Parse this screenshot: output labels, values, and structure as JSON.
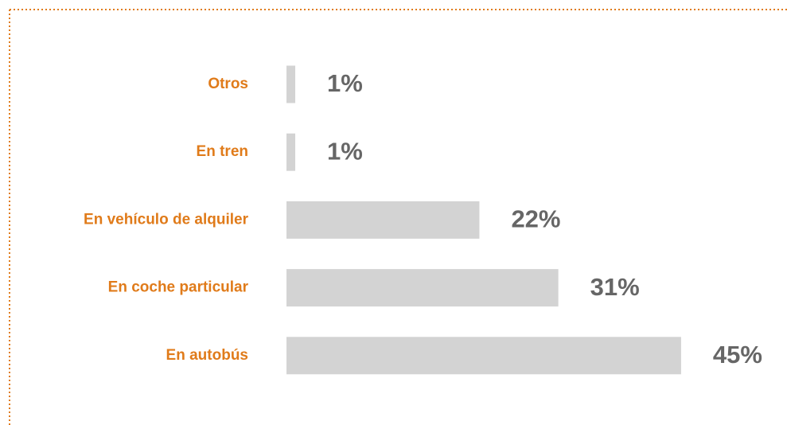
{
  "chart_data": {
    "type": "bar",
    "orientation": "horizontal",
    "categories": [
      "Otros",
      "En tren",
      "En vehículo de alquiler",
      "En coche particular",
      "En autobús"
    ],
    "values": [
      1,
      1,
      22,
      31,
      45
    ],
    "value_labels": [
      "1%",
      "1%",
      "22%",
      "31%",
      "45%"
    ],
    "color": "#d3d3d3",
    "label_color": "#e07b1a",
    "value_label_color": "#666666"
  }
}
